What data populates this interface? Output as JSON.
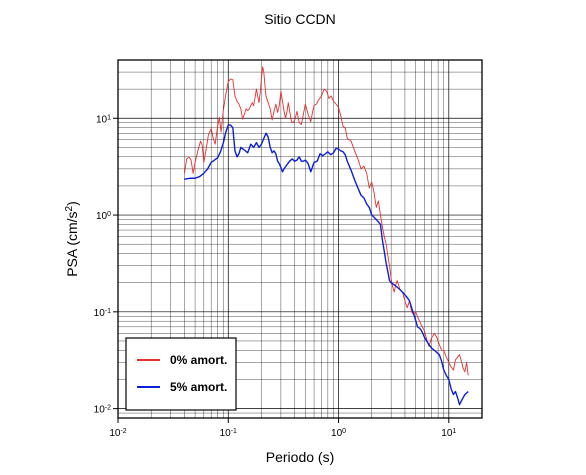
{
  "chart_data": {
    "type": "line",
    "title": "Sitio CCDN",
    "xlabel": "Periodo (s)",
    "ylabel": "PSA (cm/s²)",
    "x_scale": "log",
    "y_scale": "log",
    "xlim": [
      0.01,
      20
    ],
    "ylim": [
      0.008,
      40
    ],
    "grid": true,
    "legend_position": "bottom-left",
    "x_ticks": [
      {
        "base": "10",
        "exp": "-2"
      },
      {
        "base": "10",
        "exp": "-1"
      },
      {
        "base": "10",
        "exp": "0"
      },
      {
        "base": "10",
        "exp": "1"
      }
    ],
    "y_ticks": [
      {
        "base": "10",
        "exp": "-2"
      },
      {
        "base": "10",
        "exp": "-1"
      },
      {
        "base": "10",
        "exp": "0"
      },
      {
        "base": "10",
        "exp": "1"
      }
    ],
    "series": [
      {
        "name": "0% amort.",
        "color": "#e53030",
        "points": [
          [
            0.04,
            2.7
          ],
          [
            0.042,
            3.8
          ],
          [
            0.044,
            4.0
          ],
          [
            0.046,
            3.7
          ],
          [
            0.048,
            2.7
          ],
          [
            0.05,
            3.5
          ],
          [
            0.053,
            4.6
          ],
          [
            0.056,
            5.8
          ],
          [
            0.058,
            5.3
          ],
          [
            0.06,
            3.5
          ],
          [
            0.063,
            4.8
          ],
          [
            0.066,
            6.7
          ],
          [
            0.07,
            7.8
          ],
          [
            0.073,
            6.2
          ],
          [
            0.076,
            5.4
          ],
          [
            0.08,
            8.2
          ],
          [
            0.083,
            10.2
          ],
          [
            0.086,
            7.2
          ],
          [
            0.09,
            11.8
          ],
          [
            0.094,
            16.5
          ],
          [
            0.1,
            24.0
          ],
          [
            0.105,
            25.5
          ],
          [
            0.11,
            25.0
          ],
          [
            0.115,
            17.0
          ],
          [
            0.12,
            15.0
          ],
          [
            0.125,
            14.0
          ],
          [
            0.13,
            12.5
          ],
          [
            0.135,
            9.8
          ],
          [
            0.14,
            11.0
          ],
          [
            0.145,
            12.5
          ],
          [
            0.15,
            12.0
          ],
          [
            0.155,
            12.5
          ],
          [
            0.16,
            13.5
          ],
          [
            0.165,
            14.5
          ],
          [
            0.17,
            13.5
          ],
          [
            0.175,
            16.5
          ],
          [
            0.18,
            20.0
          ],
          [
            0.185,
            17.0
          ],
          [
            0.19,
            14.5
          ],
          [
            0.195,
            18.5
          ],
          [
            0.2,
            26.0
          ],
          [
            0.205,
            34.0
          ],
          [
            0.21,
            30.0
          ],
          [
            0.215,
            22.0
          ],
          [
            0.22,
            17.0
          ],
          [
            0.23,
            14.5
          ],
          [
            0.24,
            12.5
          ],
          [
            0.25,
            9.6
          ],
          [
            0.26,
            11.8
          ],
          [
            0.27,
            14.0
          ],
          [
            0.28,
            11.5
          ],
          [
            0.29,
            13.5
          ],
          [
            0.3,
            19.0
          ],
          [
            0.31,
            15.0
          ],
          [
            0.32,
            12.0
          ],
          [
            0.33,
            10.0
          ],
          [
            0.34,
            11.5
          ],
          [
            0.35,
            14.5
          ],
          [
            0.36,
            12.0
          ],
          [
            0.37,
            9.8
          ],
          [
            0.38,
            9.0
          ],
          [
            0.39,
            9.2
          ],
          [
            0.4,
            9.5
          ],
          [
            0.42,
            11.8
          ],
          [
            0.44,
            9.0
          ],
          [
            0.46,
            8.6
          ],
          [
            0.48,
            11.0
          ],
          [
            0.5,
            14.0
          ],
          [
            0.53,
            11.0
          ],
          [
            0.56,
            9.2
          ],
          [
            0.58,
            11.5
          ],
          [
            0.6,
            13.5
          ],
          [
            0.63,
            14.0
          ],
          [
            0.66,
            15.5
          ],
          [
            0.7,
            17.0
          ],
          [
            0.74,
            20.0
          ],
          [
            0.78,
            19.0
          ],
          [
            0.82,
            16.0
          ],
          [
            0.86,
            17.0
          ],
          [
            0.9,
            15.0
          ],
          [
            0.95,
            14.0
          ],
          [
            1.0,
            13.0
          ],
          [
            1.05,
            10.5
          ],
          [
            1.1,
            8.2
          ],
          [
            1.15,
            8.0
          ],
          [
            1.2,
            6.2
          ],
          [
            1.3,
            5.8
          ],
          [
            1.4,
            4.6
          ],
          [
            1.5,
            3.8
          ],
          [
            1.6,
            3.0
          ],
          [
            1.7,
            3.2
          ],
          [
            1.8,
            2.7
          ],
          [
            1.9,
            1.9
          ],
          [
            2.0,
            2.2
          ],
          [
            2.1,
            1.7
          ],
          [
            2.2,
            1.2
          ],
          [
            2.3,
            1.4
          ],
          [
            2.4,
            1.0
          ],
          [
            2.5,
            0.75
          ],
          [
            2.6,
            0.6
          ],
          [
            2.7,
            0.5
          ],
          [
            2.8,
            0.38
          ],
          [
            2.9,
            0.3
          ],
          [
            3.0,
            0.22
          ],
          [
            3.1,
            0.18
          ],
          [
            3.2,
            0.16
          ],
          [
            3.3,
            0.19
          ],
          [
            3.4,
            0.21
          ],
          [
            3.5,
            0.19
          ],
          [
            3.6,
            0.17
          ],
          [
            3.8,
            0.16
          ],
          [
            4.0,
            0.13
          ],
          [
            4.2,
            0.11
          ],
          [
            4.4,
            0.13
          ],
          [
            4.6,
            0.1
          ],
          [
            4.8,
            0.094
          ],
          [
            5.0,
            0.1
          ],
          [
            5.3,
            0.085
          ],
          [
            5.6,
            0.074
          ],
          [
            6.0,
            0.064
          ],
          [
            6.3,
            0.052
          ],
          [
            6.6,
            0.044
          ],
          [
            7.0,
            0.054
          ],
          [
            7.4,
            0.06
          ],
          [
            7.8,
            0.054
          ],
          [
            8.2,
            0.046
          ],
          [
            8.6,
            0.04
          ],
          [
            9.0,
            0.04
          ],
          [
            9.5,
            0.034
          ],
          [
            10.0,
            0.03
          ],
          [
            10.5,
            0.027
          ],
          [
            11.0,
            0.025
          ],
          [
            11.5,
            0.032
          ],
          [
            12.0,
            0.034
          ],
          [
            12.5,
            0.036
          ],
          [
            13.0,
            0.031
          ],
          [
            13.5,
            0.026
          ],
          [
            14.0,
            0.024
          ],
          [
            14.5,
            0.03
          ],
          [
            15.0,
            0.022
          ]
        ]
      },
      {
        "name": "5% amort.",
        "color": "#0a1fd6",
        "points": [
          [
            0.04,
            2.35
          ],
          [
            0.045,
            2.4
          ],
          [
            0.05,
            2.4
          ],
          [
            0.055,
            2.5
          ],
          [
            0.06,
            2.7
          ],
          [
            0.065,
            3.0
          ],
          [
            0.07,
            3.5
          ],
          [
            0.075,
            3.7
          ],
          [
            0.08,
            3.9
          ],
          [
            0.085,
            4.5
          ],
          [
            0.09,
            5.5
          ],
          [
            0.095,
            7.2
          ],
          [
            0.1,
            8.5
          ],
          [
            0.105,
            8.5
          ],
          [
            0.11,
            8.0
          ],
          [
            0.115,
            4.6
          ],
          [
            0.12,
            4.0
          ],
          [
            0.125,
            4.3
          ],
          [
            0.13,
            5.0
          ],
          [
            0.14,
            4.7
          ],
          [
            0.15,
            4.4
          ],
          [
            0.16,
            5.4
          ],
          [
            0.17,
            5.0
          ],
          [
            0.18,
            5.6
          ],
          [
            0.19,
            5.0
          ],
          [
            0.2,
            5.4
          ],
          [
            0.21,
            6.2
          ],
          [
            0.22,
            7.0
          ],
          [
            0.23,
            6.4
          ],
          [
            0.24,
            5.0
          ],
          [
            0.25,
            4.4
          ],
          [
            0.26,
            4.6
          ],
          [
            0.27,
            4.3
          ],
          [
            0.28,
            3.6
          ],
          [
            0.29,
            3.4
          ],
          [
            0.3,
            3.1
          ],
          [
            0.31,
            2.8
          ],
          [
            0.32,
            3.0
          ],
          [
            0.34,
            3.3
          ],
          [
            0.36,
            3.6
          ],
          [
            0.38,
            3.8
          ],
          [
            0.4,
            3.6
          ],
          [
            0.42,
            3.7
          ],
          [
            0.44,
            4.0
          ],
          [
            0.46,
            3.6
          ],
          [
            0.48,
            3.6
          ],
          [
            0.5,
            3.7
          ],
          [
            0.53,
            3.4
          ],
          [
            0.56,
            2.8
          ],
          [
            0.6,
            3.5
          ],
          [
            0.64,
            3.6
          ],
          [
            0.68,
            4.3
          ],
          [
            0.72,
            4.1
          ],
          [
            0.76,
            4.3
          ],
          [
            0.8,
            4.5
          ],
          [
            0.85,
            4.2
          ],
          [
            0.9,
            4.4
          ],
          [
            0.95,
            4.9
          ],
          [
            1.0,
            4.8
          ],
          [
            1.05,
            4.6
          ],
          [
            1.1,
            4.5
          ],
          [
            1.15,
            4.2
          ],
          [
            1.2,
            3.6
          ],
          [
            1.3,
            2.9
          ],
          [
            1.4,
            2.3
          ],
          [
            1.5,
            1.9
          ],
          [
            1.6,
            1.6
          ],
          [
            1.7,
            1.5
          ],
          [
            1.8,
            1.3
          ],
          [
            1.9,
            1.2
          ],
          [
            2.0,
            1.0
          ],
          [
            2.2,
            0.9
          ],
          [
            2.4,
            0.8
          ],
          [
            2.5,
            0.55
          ],
          [
            2.6,
            0.42
          ],
          [
            2.7,
            0.32
          ],
          [
            2.8,
            0.26
          ],
          [
            2.9,
            0.21
          ],
          [
            3.0,
            0.2
          ],
          [
            3.2,
            0.19
          ],
          [
            3.4,
            0.18
          ],
          [
            3.6,
            0.17
          ],
          [
            3.8,
            0.16
          ],
          [
            4.0,
            0.15
          ],
          [
            4.2,
            0.14
          ],
          [
            4.4,
            0.13
          ],
          [
            4.6,
            0.11
          ],
          [
            4.8,
            0.095
          ],
          [
            5.0,
            0.082
          ],
          [
            5.2,
            0.07
          ],
          [
            5.4,
            0.068
          ],
          [
            5.6,
            0.065
          ],
          [
            5.8,
            0.06
          ],
          [
            6.0,
            0.055
          ],
          [
            6.3,
            0.05
          ],
          [
            6.6,
            0.046
          ],
          [
            7.0,
            0.042
          ],
          [
            7.4,
            0.04
          ],
          [
            7.8,
            0.038
          ],
          [
            8.2,
            0.036
          ],
          [
            8.6,
            0.031
          ],
          [
            9.0,
            0.025
          ],
          [
            9.5,
            0.022
          ],
          [
            10.0,
            0.02
          ],
          [
            10.5,
            0.016
          ],
          [
            11.0,
            0.014
          ],
          [
            11.5,
            0.015
          ],
          [
            12.0,
            0.013
          ],
          [
            12.5,
            0.011
          ],
          [
            13.0,
            0.012
          ],
          [
            13.5,
            0.013
          ],
          [
            14.0,
            0.014
          ],
          [
            14.5,
            0.0145
          ],
          [
            15.0,
            0.015
          ]
        ]
      }
    ]
  }
}
